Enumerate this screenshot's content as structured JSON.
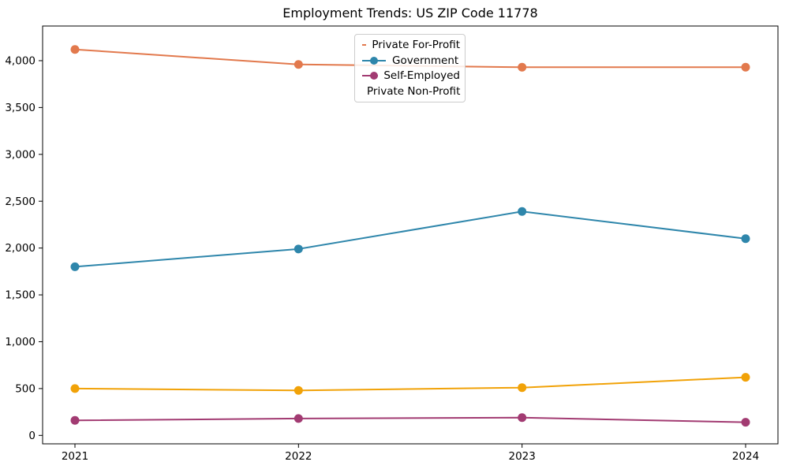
{
  "figure": {
    "background": "#ffffff",
    "axes_edge_color": "#000000",
    "tick_color": "#000000"
  },
  "chart_data": {
    "type": "line",
    "title": "Employment Trends: US ZIP Code 11778",
    "xlabel": "",
    "ylabel": "",
    "categories": [
      "2021",
      "2022",
      "2023",
      "2024"
    ],
    "series": [
      {
        "name": "Private For-Profit",
        "color": "#E2794D",
        "values": [
          4120,
          3960,
          3930,
          3930
        ]
      },
      {
        "name": "Government",
        "color": "#2E86AB",
        "values": [
          1800,
          1990,
          2390,
          2100
        ]
      },
      {
        "name": "Self-Employed",
        "color": "#A23B72",
        "values": [
          160,
          180,
          190,
          140
        ]
      },
      {
        "name": "Private Non-Profit",
        "color": "#F1A208",
        "values": [
          500,
          480,
          510,
          620
        ]
      }
    ],
    "ylim": [
      -90,
      4370
    ],
    "yticks": {
      "values": [
        0,
        500,
        1000,
        1500,
        2000,
        2500,
        3000,
        3500,
        4000
      ],
      "labels": [
        "0",
        "500",
        "1,000",
        "1,500",
        "2,000",
        "2,500",
        "3,000",
        "3,500",
        "4,000"
      ]
    },
    "grid": false,
    "legend_position": "upper-center",
    "marker": "circle"
  }
}
